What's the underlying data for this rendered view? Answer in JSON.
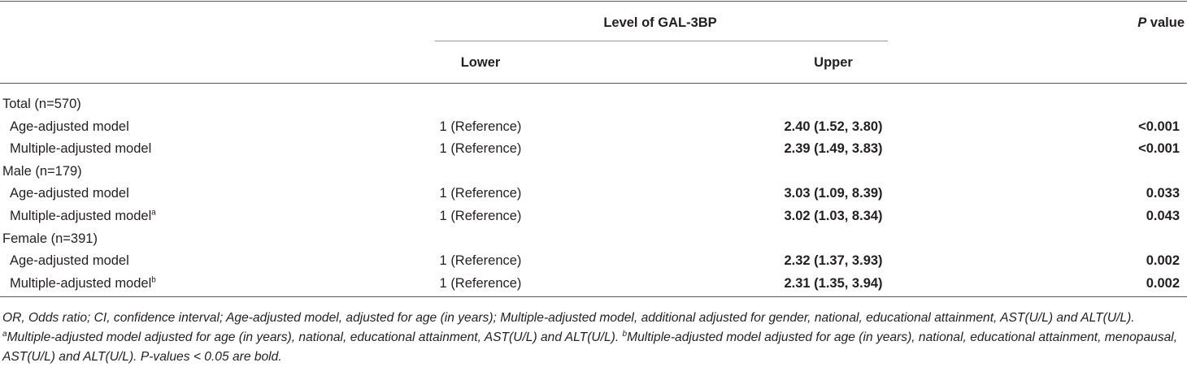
{
  "header": {
    "group": "Level of GAL-3BP",
    "p_italic": "P",
    "p_text": "value",
    "lower": "Lower",
    "upper": "Upper"
  },
  "rows": [
    {
      "label": "Total (n=570)"
    },
    {
      "label": "Age-adjusted model",
      "lower": "1 (Reference)",
      "upper": "2.40 (1.52, 3.80)",
      "p": "<0.001"
    },
    {
      "label": "Multiple-adjusted model",
      "lower": "1 (Reference)",
      "upper": "2.39 (1.49, 3.83)",
      "p": "<0.001"
    },
    {
      "label": "Male (n=179)"
    },
    {
      "label": "Age-adjusted model",
      "lower": "1 (Reference)",
      "upper": "3.03 (1.09, 8.39)",
      "p": "0.033"
    },
    {
      "label": "Multiple-adjusted model",
      "sup": "a",
      "lower": "1 (Reference)",
      "upper": "3.02 (1.03, 8.34)",
      "p": "0.043"
    },
    {
      "label": "Female (n=391)"
    },
    {
      "label": "Age-adjusted model",
      "lower": "1 (Reference)",
      "upper": "2.32 (1.37, 3.93)",
      "p": "0.002"
    },
    {
      "label": "Multiple-adjusted model",
      "sup": "b",
      "lower": "1 (Reference)",
      "upper": "2.31 (1.35, 3.94)",
      "p": "0.002"
    }
  ],
  "footnote": [
    "OR, Odds ratio; CI, confidence interval; Age-adjusted model, adjusted for age (in years); Multiple-adjusted model, additional adjusted for gender, national, educational attainment, AST(U/L) and ALT(U/L). ",
    "a",
    "Multiple-adjusted model adjusted for age (in years), national, educational attainment, AST(U/L) and ALT(U/L). ",
    "b",
    "Multiple-adjusted model adjusted for age (in years), national, educational attainment, menopausal, AST(U/L) and ALT(U/L). P-values < 0.05 are bold."
  ]
}
